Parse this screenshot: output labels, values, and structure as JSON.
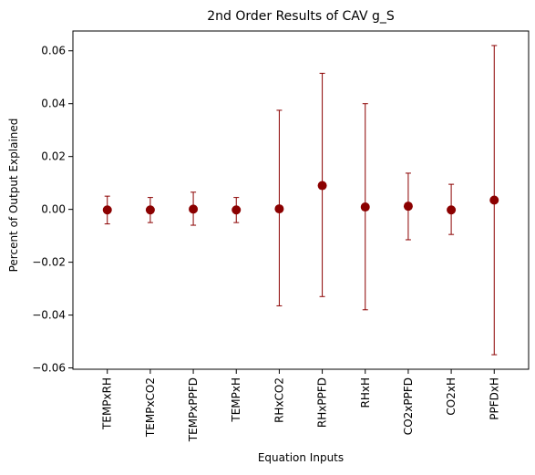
{
  "chart_data": {
    "type": "scatter",
    "title": "2nd Order Results of CAV g_S",
    "xlabel": "Equation Inputs",
    "ylabel": "Percent of Output Explained",
    "categories": [
      "TEMPxRH",
      "TEMPxCO2",
      "TEMPxPPFD",
      "TEMPxH",
      "RHxCO2",
      "RHxPPFD",
      "RHxH",
      "CO2xPPFD",
      "CO2xH",
      "PPFDxH"
    ],
    "series": [
      {
        "values": [
          -0.0002,
          -0.0002,
          0.0001,
          -0.0002,
          0.0002,
          0.009,
          0.0009,
          0.0012,
          -0.0002,
          0.0035
        ],
        "error_low": [
          -0.0055,
          -0.005,
          -0.006,
          -0.005,
          -0.0365,
          -0.033,
          -0.038,
          -0.0115,
          -0.0095,
          -0.055
        ],
        "error_high": [
          0.005,
          0.0045,
          0.0065,
          0.0045,
          0.0375,
          0.0515,
          0.04,
          0.0137,
          0.0095,
          0.062
        ],
        "color": "#8b0000"
      }
    ],
    "ylim": [
      -0.0605,
      0.0675
    ],
    "yticks": [
      -0.06,
      -0.04,
      -0.02,
      0.0,
      0.02,
      0.04,
      0.06
    ],
    "ytick_labels": [
      "−0.06",
      "−0.04",
      "−0.02",
      "0.00",
      "0.02",
      "0.04",
      "0.06"
    ],
    "grid": false,
    "legend": "none"
  }
}
